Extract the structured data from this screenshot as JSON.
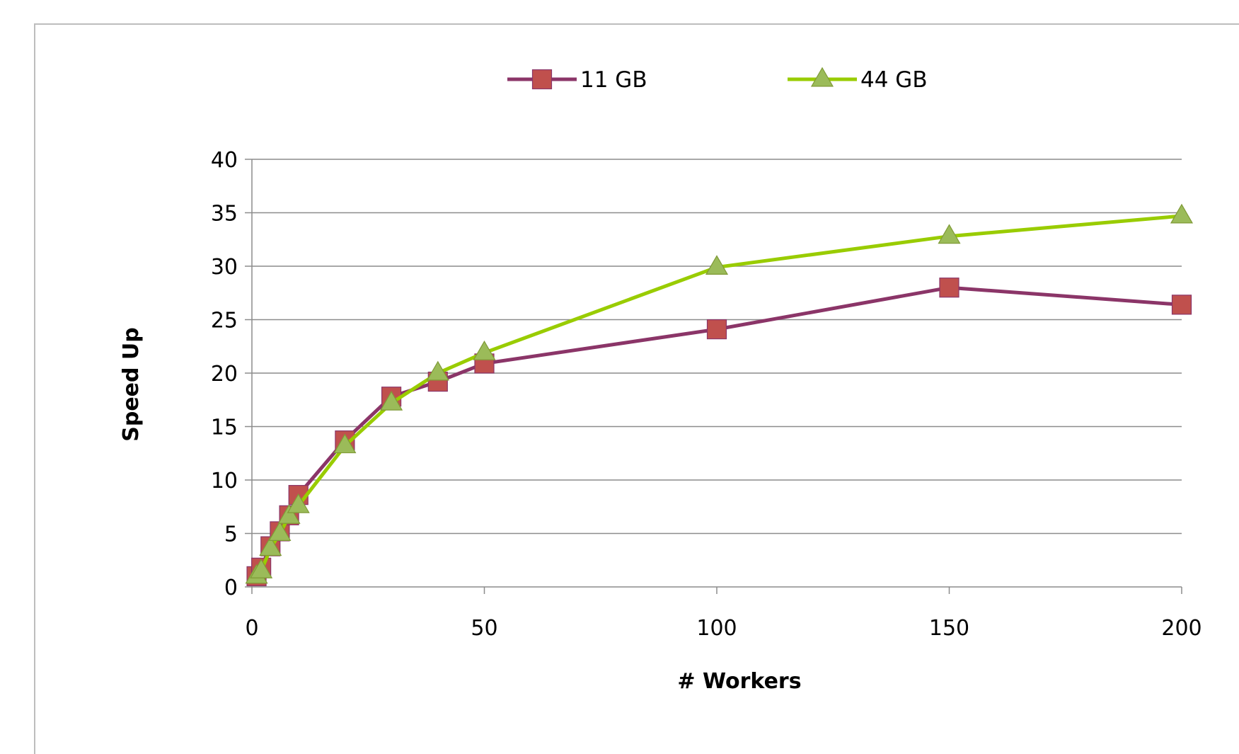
{
  "chart_data": {
    "type": "line",
    "title": "",
    "xlabel": "# Workers",
    "ylabel": "Speed Up",
    "xlim": [
      0,
      200
    ],
    "ylim": [
      0,
      40
    ],
    "xticks": [
      0,
      50,
      100,
      150,
      200
    ],
    "yticks": [
      0,
      5,
      10,
      15,
      20,
      25,
      30,
      35,
      40
    ],
    "grid": "horizontal",
    "legend_position": "top-center",
    "series": [
      {
        "name": "11 GB",
        "color": "#8b3568",
        "marker_color": "#c0504d",
        "marker": "square",
        "points": [
          [
            1,
            1
          ],
          [
            2,
            1.8
          ],
          [
            4,
            3.8
          ],
          [
            6,
            5.2
          ],
          [
            8,
            6.7
          ],
          [
            10,
            8.6
          ],
          [
            20,
            13.7
          ],
          [
            30,
            17.8
          ],
          [
            40,
            19.2
          ],
          [
            50,
            20.9
          ],
          [
            100,
            24.1
          ],
          [
            150,
            28
          ],
          [
            200,
            26.4
          ]
        ]
      },
      {
        "name": "44 GB",
        "color": "#99cc00",
        "marker_color": "#9bbb59",
        "marker": "triangle",
        "points": [
          [
            1,
            1
          ],
          [
            2,
            1.5
          ],
          [
            4,
            3.6
          ],
          [
            6,
            5.0
          ],
          [
            8,
            6.6
          ],
          [
            10,
            7.6
          ],
          [
            20,
            13.2
          ],
          [
            30,
            17.2
          ],
          [
            40,
            20.0
          ],
          [
            50,
            21.9
          ],
          [
            100,
            29.9
          ],
          [
            150,
            32.8
          ],
          [
            200,
            34.7
          ]
        ]
      }
    ]
  }
}
